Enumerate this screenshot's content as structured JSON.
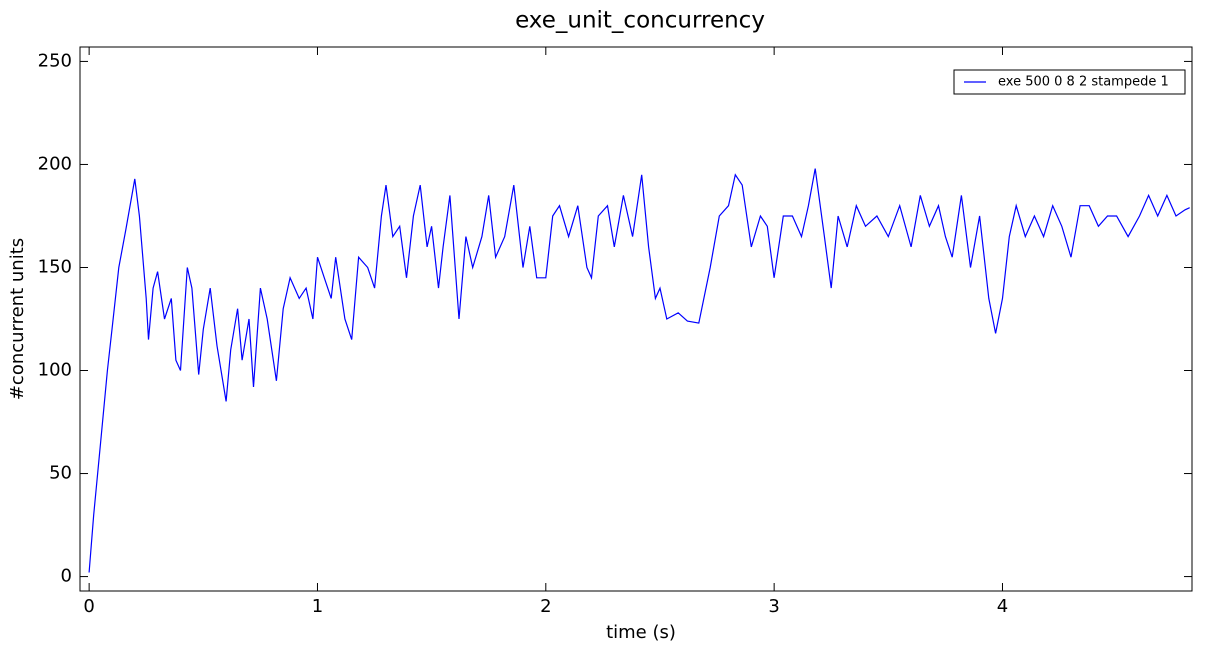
{
  "chart_data": {
    "type": "line",
    "title": "exe_unit_concurrency",
    "xlabel": "time (s)",
    "ylabel": "#concurrent units",
    "x": [
      0,
      0.02,
      0.05,
      0.08,
      0.1,
      0.13,
      0.16,
      0.2,
      0.22,
      0.25,
      0.26,
      0.28,
      0.3,
      0.33,
      0.36,
      0.38,
      0.4,
      0.43,
      0.45,
      0.48,
      0.5,
      0.53,
      0.56,
      0.6,
      0.62,
      0.65,
      0.67,
      0.7,
      0.72,
      0.75,
      0.78,
      0.82,
      0.85,
      0.88,
      0.92,
      0.95,
      0.98,
      1.0,
      1.03,
      1.06,
      1.08,
      1.12,
      1.15,
      1.18,
      1.22,
      1.25,
      1.28,
      1.3,
      1.33,
      1.36,
      1.39,
      1.42,
      1.45,
      1.48,
      1.5,
      1.53,
      1.55,
      1.58,
      1.62,
      1.65,
      1.68,
      1.72,
      1.75,
      1.78,
      1.82,
      1.86,
      1.9,
      1.93,
      1.96,
      2.0,
      2.03,
      2.06,
      2.1,
      2.14,
      2.18,
      2.2,
      2.23,
      2.27,
      2.3,
      2.34,
      2.38,
      2.42,
      2.45,
      2.48,
      2.5,
      2.53,
      2.58,
      2.62,
      2.67,
      2.72,
      2.76,
      2.8,
      2.83,
      2.86,
      2.9,
      2.94,
      2.97,
      3.0,
      3.04,
      3.08,
      3.12,
      3.15,
      3.18,
      3.22,
      3.25,
      3.28,
      3.32,
      3.36,
      3.4,
      3.45,
      3.5,
      3.55,
      3.6,
      3.64,
      3.68,
      3.72,
      3.75,
      3.78,
      3.82,
      3.86,
      3.9,
      3.94,
      3.97,
      4.0,
      4.03,
      4.06,
      4.1,
      4.14,
      4.18,
      4.22,
      4.26,
      4.3,
      4.34,
      4.38,
      4.42,
      4.46,
      4.5,
      4.55,
      4.6,
      4.64,
      4.68,
      4.72,
      4.76,
      4.8,
      4.82
    ],
    "series": [
      {
        "name": "exe 500 0 8 2 stampede 1",
        "color": "#0000ff",
        "values": [
          2,
          30,
          65,
          100,
          120,
          150,
          168,
          193,
          175,
          135,
          115,
          140,
          148,
          125,
          135,
          105,
          100,
          150,
          140,
          98,
          120,
          140,
          112,
          85,
          110,
          130,
          105,
          125,
          92,
          140,
          125,
          95,
          130,
          145,
          135,
          140,
          125,
          155,
          145,
          135,
          155,
          125,
          115,
          155,
          150,
          140,
          175,
          190,
          165,
          170,
          145,
          175,
          190,
          160,
          170,
          140,
          160,
          185,
          125,
          165,
          150,
          165,
          185,
          155,
          165,
          190,
          150,
          170,
          145,
          145,
          175,
          180,
          165,
          180,
          150,
          145,
          175,
          180,
          160,
          185,
          165,
          195,
          160,
          135,
          140,
          125,
          128,
          124,
          123,
          150,
          175,
          180,
          195,
          190,
          160,
          175,
          170,
          145,
          175,
          175,
          165,
          180,
          198,
          165,
          140,
          175,
          160,
          180,
          170,
          175,
          165,
          180,
          160,
          185,
          170,
          180,
          165,
          155,
          185,
          150,
          175,
          135,
          118,
          135,
          165,
          180,
          165,
          175,
          165,
          180,
          170,
          155,
          180,
          180,
          170,
          175,
          175,
          165,
          175,
          185,
          175,
          185,
          175,
          178,
          179
        ]
      }
    ],
    "xlim": [
      -0.04,
      4.83
    ],
    "ylim": [
      -7,
      257
    ],
    "xticks": [
      0,
      1,
      2,
      3,
      4
    ],
    "yticks": [
      0,
      50,
      100,
      150,
      200,
      250
    ],
    "legend": "upper right"
  }
}
